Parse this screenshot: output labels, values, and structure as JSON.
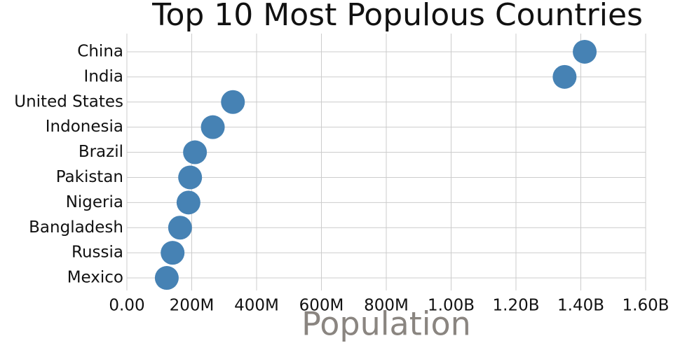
{
  "chart_data": {
    "type": "dot",
    "title": "Top 10 Most Populous Countries",
    "x_label": "Population",
    "categories": [
      "China",
      "India",
      "United States",
      "Indonesia",
      "Brazil",
      "Pakistan",
      "Nigeria",
      "Bangladesh",
      "Russia",
      "Mexico"
    ],
    "values": [
      1412000000,
      1350000000,
      327000000,
      265000000,
      210000000,
      195000000,
      190000000,
      164000000,
      141000000,
      123000000
    ],
    "color": "#4682b4",
    "xlim": [
      0,
      1600000000
    ],
    "xticks": [
      {
        "value": 0,
        "label": "0.00"
      },
      {
        "value": 200000000,
        "label": "200M"
      },
      {
        "value": 400000000,
        "label": "400M"
      },
      {
        "value": 600000000,
        "label": "600M"
      },
      {
        "value": 800000000,
        "label": "800M"
      },
      {
        "value": 1000000000,
        "label": "1.00B"
      },
      {
        "value": 1200000000,
        "label": "1.20B"
      },
      {
        "value": 1400000000,
        "label": "1.40B"
      },
      {
        "value": 1600000000,
        "label": "1.60B"
      }
    ],
    "grid": true
  }
}
